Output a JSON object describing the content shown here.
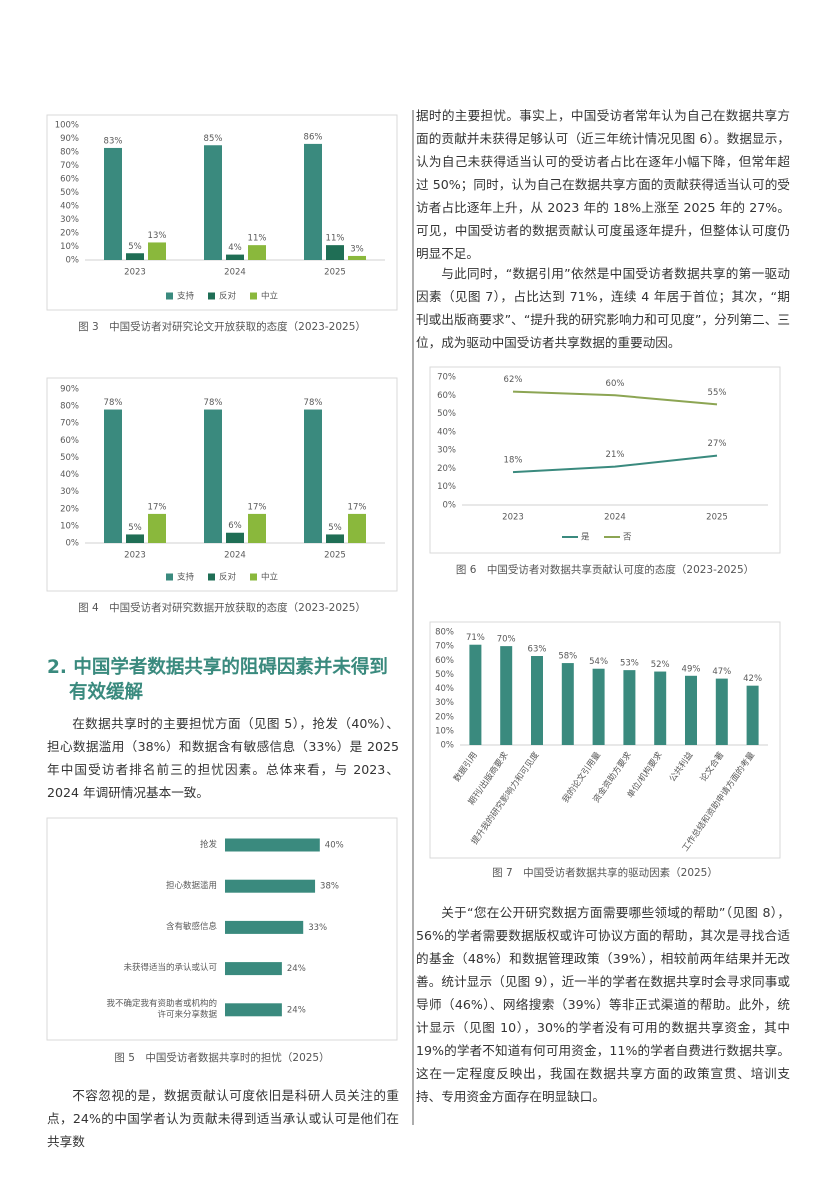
{
  "chart_data": [
    {
      "type": "bar",
      "caption": "图 3　中国受访者对研究论文开放获取的态度（2023-2025）",
      "categories": [
        "2023",
        "2024",
        "2025"
      ],
      "series": [
        {
          "name": "支持",
          "color": "#3a8a7e",
          "values": [
            83,
            85,
            86
          ],
          "value_labels": [
            "83%",
            "85%",
            "86%"
          ]
        },
        {
          "name": "反对",
          "color": "#1f6e55",
          "values": [
            5,
            4,
            11
          ],
          "value_labels": [
            "5%",
            "4%",
            "11%"
          ]
        },
        {
          "name": "中立",
          "color": "#8ab83c",
          "values": [
            13,
            11,
            3
          ],
          "value_labels": [
            "13%",
            "11%",
            "3%"
          ]
        }
      ],
      "ylim": [
        0,
        100
      ],
      "yticks": [
        {
          "value": 0,
          "label": "0%"
        },
        {
          "value": 10,
          "label": "10%"
        },
        {
          "value": 20,
          "label": "20%"
        },
        {
          "value": 30,
          "label": "30%"
        },
        {
          "value": 40,
          "label": "40%"
        },
        {
          "value": 50,
          "label": "50%"
        },
        {
          "value": 60,
          "label": "60%"
        },
        {
          "value": 70,
          "label": "70%"
        },
        {
          "value": 80,
          "label": "80%"
        },
        {
          "value": 90,
          "label": "90%"
        },
        {
          "value": 100,
          "label": "100%"
        }
      ],
      "grid": false,
      "legend": "bottom"
    },
    {
      "type": "bar",
      "caption": "图 4　中国受访者对研究数据开放获取的态度（2023-2025）",
      "categories": [
        "2023",
        "2024",
        "2025"
      ],
      "series": [
        {
          "name": "支持",
          "color": "#3a8a7e",
          "values": [
            78,
            78,
            78
          ],
          "value_labels": [
            "78%",
            "78%",
            "78%"
          ]
        },
        {
          "name": "反对",
          "color": "#1f6e55",
          "values": [
            5,
            6,
            5
          ],
          "value_labels": [
            "5%",
            "6%",
            "5%"
          ]
        },
        {
          "name": "中立",
          "color": "#8ab83c",
          "values": [
            17,
            17,
            17
          ],
          "value_labels": [
            "17%",
            "17%",
            "17%"
          ]
        }
      ],
      "ylim": [
        0,
        90
      ],
      "yticks": [
        {
          "value": 0,
          "label": "0%"
        },
        {
          "value": 10,
          "label": "10%"
        },
        {
          "value": 20,
          "label": "20%"
        },
        {
          "value": 30,
          "label": "30%"
        },
        {
          "value": 40,
          "label": "40%"
        },
        {
          "value": 50,
          "label": "50%"
        },
        {
          "value": 60,
          "label": "60%"
        },
        {
          "value": 70,
          "label": "70%"
        },
        {
          "value": 80,
          "label": "80%"
        },
        {
          "value": 90,
          "label": "90%"
        }
      ],
      "grid": false,
      "legend": "bottom"
    },
    {
      "type": "hbar",
      "caption": "图 5　中国受访者数据共享时的担忧（2025）",
      "categories": [
        "抢发",
        "担心数据滥用",
        "含有敏感信息",
        "未获得适当的承认或认可",
        "我不确定我有资助者或机构的许可来分享数据"
      ],
      "values": [
        40,
        38,
        33,
        24,
        24
      ],
      "value_labels": [
        "40%",
        "38%",
        "33%",
        "24%",
        "24%"
      ],
      "color": "#3a8a7e"
    },
    {
      "type": "line",
      "caption": "图 6　中国受访者对数据共享贡献认可度的态度（2023-2025）",
      "categories": [
        "2023",
        "2024",
        "2025"
      ],
      "series": [
        {
          "name": "是",
          "color": "#3a8a7e",
          "values": [
            18,
            21,
            27
          ],
          "value_labels": [
            "18%",
            "21%",
            "27%"
          ]
        },
        {
          "name": "否",
          "color": "#8ca553",
          "values": [
            62,
            60,
            55
          ],
          "value_labels": [
            "62%",
            "60%",
            "55%"
          ]
        }
      ],
      "ylim": [
        0,
        70
      ],
      "yticks": [
        {
          "value": 0,
          "label": "0%"
        },
        {
          "value": 10,
          "label": "10%"
        },
        {
          "value": 20,
          "label": "20%"
        },
        {
          "value": 30,
          "label": "30%"
        },
        {
          "value": 40,
          "label": "40%"
        },
        {
          "value": 50,
          "label": "50%"
        },
        {
          "value": 60,
          "label": "60%"
        },
        {
          "value": 70,
          "label": "70%"
        }
      ],
      "grid": false,
      "legend": "bottom"
    },
    {
      "type": "bar",
      "caption": "图 7　中国受访者数据共享的驱动因素（2025）",
      "categories": [
        "数据引用",
        "期刊/出版商要求",
        "提升我的研究影响力和可见度",
        null,
        "我的论文引用量",
        "资金资助方要求",
        "单位/机构要求",
        "公共利益",
        "论文合著",
        "工作总结和资助申请方面的考量"
      ],
      "values": [
        71,
        70,
        63,
        58,
        54,
        53,
        52,
        49,
        47,
        42
      ],
      "value_labels": [
        "71%",
        "70%",
        "63%",
        "58%",
        "54%",
        "53%",
        "52%",
        "49%",
        "47%",
        "42%"
      ],
      "color": "#3a8a7e",
      "ylim": [
        0,
        80
      ],
      "yticks": [
        {
          "value": 0,
          "label": "0%"
        },
        {
          "value": 10,
          "label": "10%"
        },
        {
          "value": 20,
          "label": "20%"
        },
        {
          "value": 30,
          "label": "30%"
        },
        {
          "value": 40,
          "label": "40%"
        },
        {
          "value": 50,
          "label": "50%"
        },
        {
          "value": 60,
          "label": "60%"
        },
        {
          "value": 70,
          "label": "70%"
        },
        {
          "value": 80,
          "label": "80%"
        }
      ],
      "grid": false
    }
  ],
  "document": {
    "heading": "2. 中国学者数据共享的阻碍因素并未得到有效缓解",
    "paragraphs": [
      "在数据共享时的主要担忧方面（见图 5），抢发（40%）、担心数据滥用（38%）和数据含有敏感信息（33%）是 2025 年中国受访者排名前三的担忧因素。总体来看，与 2023、2024 年调研情况基本一致。",
      "不容忽视的是，数据贡献认可度依旧是科研人员关注的重点，24%的中国学者认为贡献未得到适当承认或认可是他们在共享数",
      "据时的主要担忧。事实上，中国受访者常年认为自己在数据共享方面的贡献并未获得足够认可（近三年统计情况见图 6）。数据显示，认为自己未获得适当认可的受访者占比在逐年小幅下降，但常年超过 50%；同时，认为自己在数据共享方面的贡献获得适当认可的受访者占比逐年上升，从 2023 年的 18%上涨至 2025 年的 27%。可见，中国受访者的数据贡献认可度虽逐年提升，但整体认可度仍明显不足。",
      "与此同时，“数据引用”依然是中国受访者数据共享的第一驱动因素（见图 7），占比达到 71%，连续 4 年居于首位；其次，“期刊或出版商要求”、“提升我的研究影响力和可见度”，分列第二、三位，成为驱动中国受访者共享数据的重要动因。",
      "关于“您在公开研究数据方面需要哪些领域的帮助”（见图 8），56%的学者需要数据版权或许可协议方面的帮助，其次是寻找合适的基金（48%）和数据管理政策（39%），相较前两年结果并无改善。统计显示（见图 9），近一半的学者在数据共享时会寻求同事或导师（46%）、网络搜索（39%）等非正式渠道的帮助。此外，统计显示（见图 10），30%的学者没有可用的数据共享资金，其中 19%的学者不知道有何可用资金，11%的学者自费进行数据共享。这在一定程度反映出，我国在数据共享方面的政策宣贯、培训支持、专用资金方面存在明显缺口。"
    ]
  }
}
